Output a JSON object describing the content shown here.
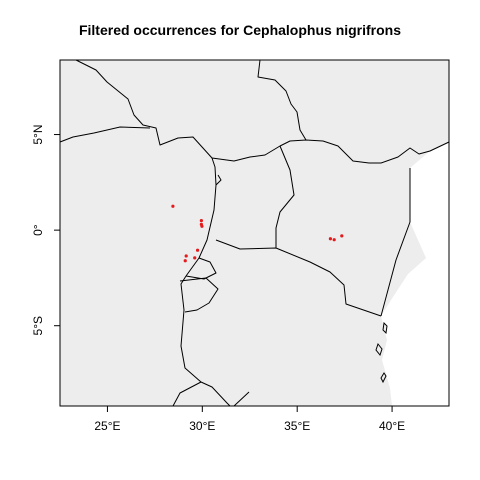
{
  "title": "Filtered occurrences for Cephalophus nigrifrons",
  "colors": {
    "land": "#ededed",
    "sea": "#ffffff",
    "border": "#000000",
    "points": "#e41a1c"
  },
  "map_extent": {
    "lon": [
      22.5,
      43.0
    ],
    "lat": [
      -9.2,
      8.9
    ]
  },
  "x_ticks": [
    {
      "label": "25°E",
      "lon": 25
    },
    {
      "label": "30°E",
      "lon": 30
    },
    {
      "label": "35°E",
      "lon": 35
    },
    {
      "label": "40°E",
      "lon": 40
    }
  ],
  "y_ticks": [
    {
      "label": "5°N",
      "lat": 5
    },
    {
      "label": "0°",
      "lat": 0
    },
    {
      "label": "5°S",
      "lat": -5
    }
  ],
  "occurrences": [
    {
      "lon": 28.45,
      "lat": 1.25
    },
    {
      "lon": 29.95,
      "lat": 0.5
    },
    {
      "lon": 29.95,
      "lat": 0.3
    },
    {
      "lon": 29.98,
      "lat": 0.2
    },
    {
      "lon": 29.75,
      "lat": -1.05
    },
    {
      "lon": 29.6,
      "lat": -1.45
    },
    {
      "lon": 29.15,
      "lat": -1.35
    },
    {
      "lon": 29.1,
      "lat": -1.6
    },
    {
      "lon": 36.75,
      "lat": -0.45
    },
    {
      "lon": 36.95,
      "lat": -0.5
    },
    {
      "lon": 37.35,
      "lat": -0.3
    }
  ]
}
